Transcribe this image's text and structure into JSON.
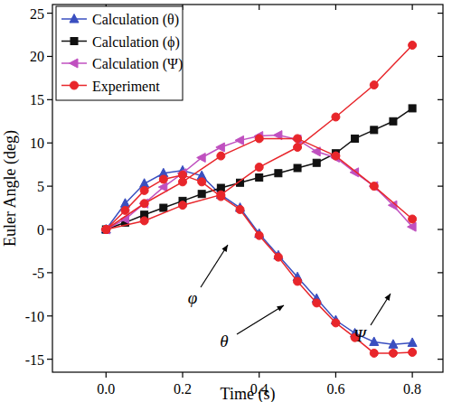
{
  "chart_data": {
    "type": "line",
    "x_label": "Time (s)",
    "y_label": "Euler Angle (deg)",
    "xlim": [
      -0.14,
      0.88
    ],
    "ylim": [
      -16.5,
      26
    ],
    "xticks": [
      {
        "value": 0,
        "label": "0.0"
      },
      0.2,
      0.4,
      0.6,
      0.8
    ],
    "yticks": [
      -15,
      -10,
      -5,
      0,
      5,
      10,
      15,
      20,
      25
    ],
    "grid": false,
    "legend": "top-left",
    "annotations": [
      "φ",
      "Ψ",
      "θ"
    ],
    "series": [
      {
        "name": "Calculation (θ)",
        "color": "#3a4fc0",
        "marker": "triangle",
        "line_style": "solid",
        "x": [
          0,
          0.05,
          0.1,
          0.15,
          0.2,
          0.25,
          0.3,
          0.35,
          0.4,
          0.45,
          0.5,
          0.55,
          0.6,
          0.65,
          0.7,
          0.75,
          0.8
        ],
        "values": [
          0,
          3,
          5.3,
          6.5,
          6.8,
          6.2,
          4,
          2.5,
          -0.5,
          -3,
          -5.5,
          -8,
          -10.5,
          -12,
          -13,
          -13.3,
          -13.1
        ]
      },
      {
        "name": "Calculation (ϕ)",
        "color": "#111111",
        "marker": "square",
        "line_style": "solid",
        "x": [
          0,
          0.05,
          0.1,
          0.15,
          0.2,
          0.25,
          0.3,
          0.35,
          0.4,
          0.45,
          0.5,
          0.55,
          0.6,
          0.65,
          0.7,
          0.75,
          0.8
        ],
        "values": [
          0,
          0.8,
          1.7,
          2.5,
          3.3,
          4.1,
          4.8,
          5.4,
          6,
          6.5,
          7.1,
          7.7,
          8.8,
          10.5,
          11.5,
          12.5,
          14
        ]
      },
      {
        "name": "Calculation (Ψ)",
        "color": "#c050c0",
        "marker": "triangle-left",
        "line_style": "solid",
        "x": [
          0,
          0.05,
          0.1,
          0.15,
          0.2,
          0.25,
          0.3,
          0.35,
          0.4,
          0.45,
          0.5,
          0.55,
          0.6,
          0.65,
          0.7,
          0.75,
          0.8
        ],
        "values": [
          0,
          1.2,
          3,
          4.9,
          6.5,
          8.3,
          9.5,
          10.3,
          10.8,
          10.9,
          10.4,
          9,
          8.3,
          6.6,
          5,
          2.8,
          0.3
        ]
      },
      {
        "name": "Experiment",
        "color": "#e8262b",
        "marker": "circle",
        "line_style": "solid",
        "x": [
          0,
          0.05,
          0.1,
          0.15,
          0.2,
          0.25,
          0.3,
          0.35,
          0.4,
          0.45,
          0.5,
          0.55,
          0.6,
          0.65,
          0.7,
          0.75,
          0.8
        ],
        "values": [
          0,
          2.2,
          4.5,
          5.8,
          6.3,
          5.5,
          3.8,
          2.3,
          -0.7,
          -3.2,
          -6,
          -8.5,
          -10.8,
          -12.5,
          -14.3,
          -14.3,
          -14.2
        ]
      },
      {
        "color": "#e8262b",
        "marker": "circle",
        "line_style": "solid",
        "x": [
          0,
          0.1,
          0.2,
          0.3,
          0.4,
          0.5,
          0.6,
          0.7,
          0.8
        ],
        "values": [
          0,
          1,
          2.8,
          4,
          7.2,
          9.5,
          13,
          16.7,
          21.3
        ]
      },
      {
        "color": "#e8262b",
        "marker": "circle",
        "line_style": "solid",
        "x": [
          0,
          0.1,
          0.2,
          0.3,
          0.4,
          0.5,
          0.6,
          0.7,
          0.8
        ],
        "values": [
          0,
          3,
          5.5,
          8.5,
          10.5,
          10.5,
          8.5,
          5,
          1.2
        ]
      }
    ]
  }
}
